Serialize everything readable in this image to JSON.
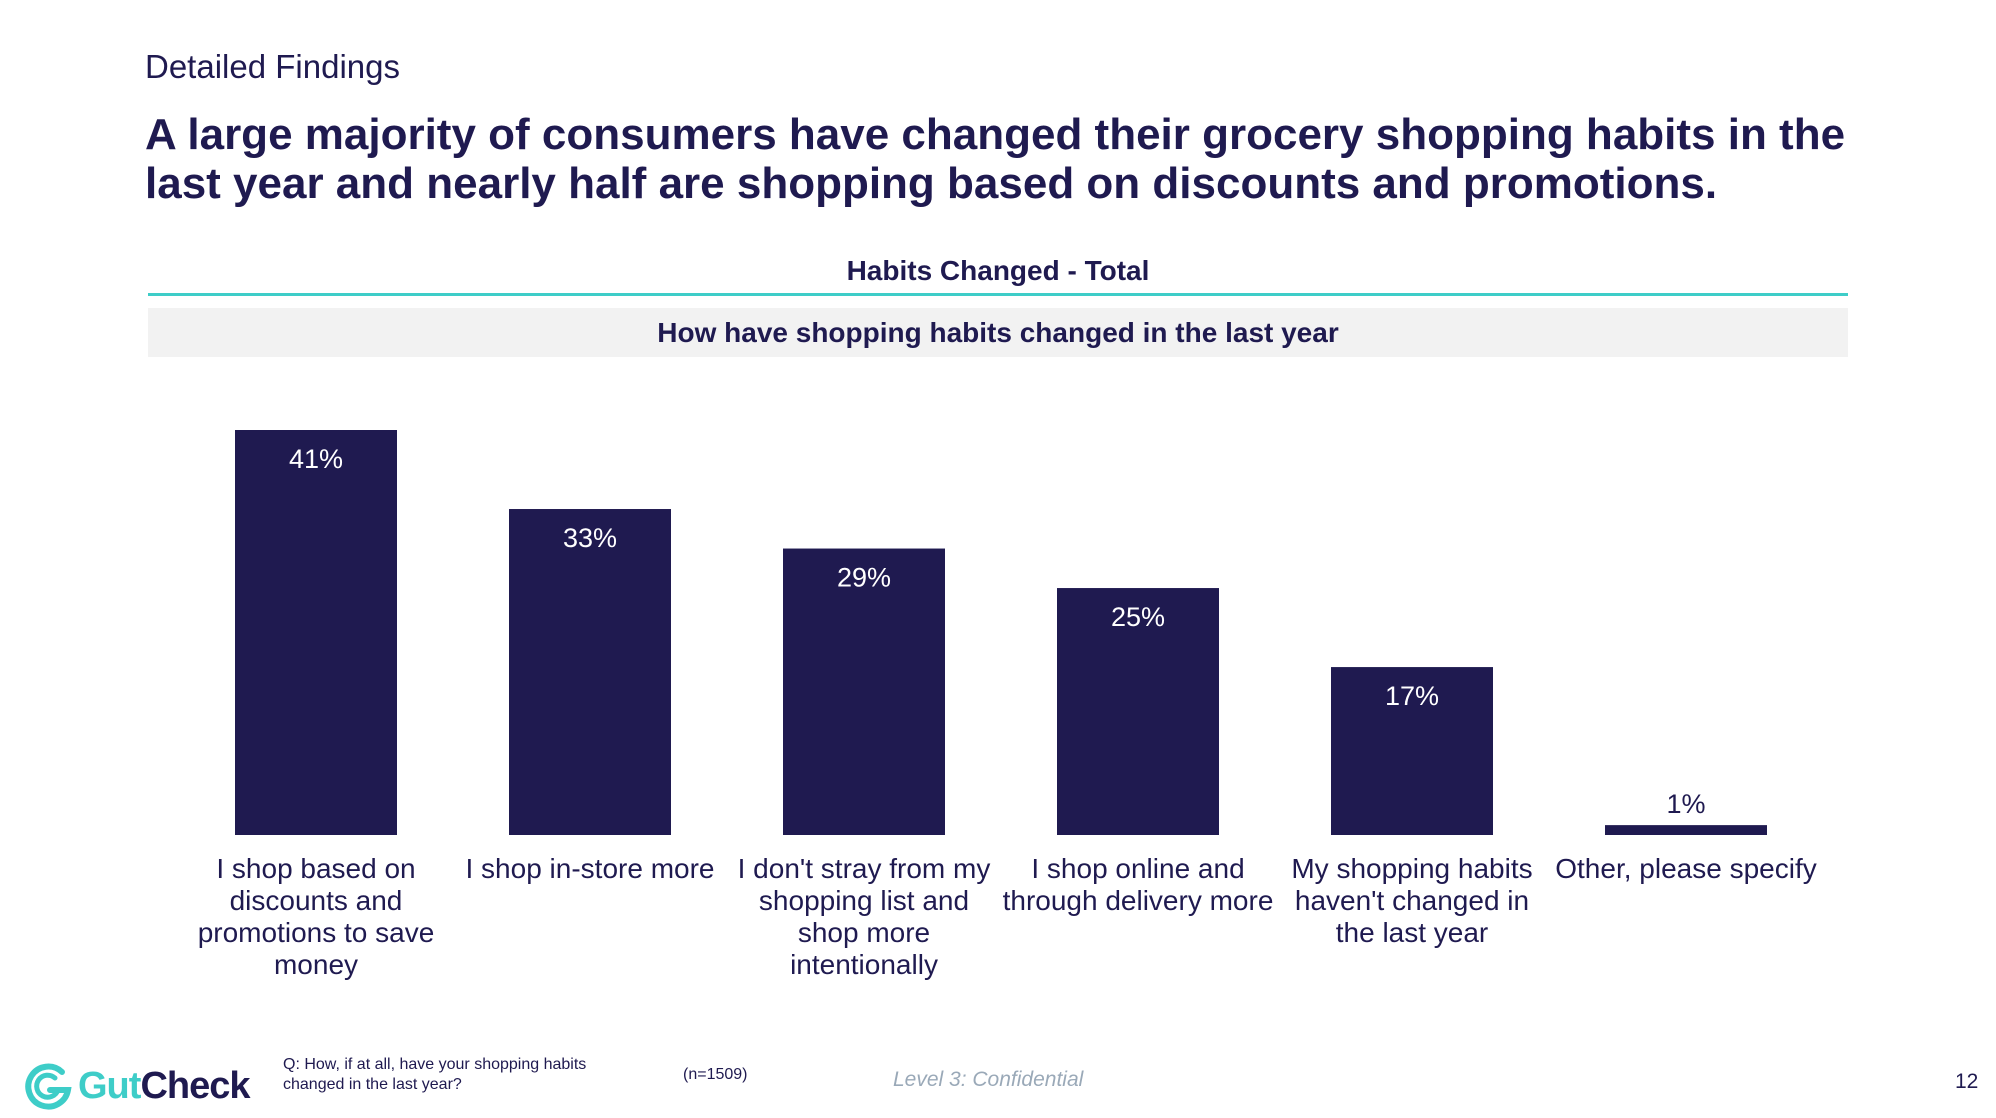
{
  "header": {
    "section_label": "Detailed Findings",
    "headline": "A large majority of consumers have changed their grocery shopping habits in the last year and nearly half are shopping based on discounts and promotions."
  },
  "chart_data": {
    "type": "bar",
    "title": "Habits Changed - Total",
    "subtitle": "How have shopping habits changed in the last year",
    "categories": [
      "I shop based on discounts and promotions to save money",
      "I shop in-store more",
      "I don't stray from my shopping list and shop more intentionally",
      "I shop online and through delivery more",
      "My shopping habits haven't changed in the last year",
      "Other, please specify"
    ],
    "values": [
      41,
      33,
      29,
      25,
      17,
      1
    ],
    "value_labels": [
      "41%",
      "33%",
      "29%",
      "25%",
      "17%",
      "1%"
    ],
    "ylim": [
      0,
      45
    ],
    "grid": false,
    "bar_color": "#1f1a50"
  },
  "footer": {
    "logo_gut": "Gut",
    "logo_check": "Check",
    "question": "Q: How, if at all, have your shopping habits changed in the last year?",
    "sample": "(n=1509)",
    "confidential": "Level 3: Confidential",
    "page_number": "12"
  },
  "colors": {
    "navy": "#1f1a50",
    "teal": "#3ecdc8",
    "band": "#f2f2f2",
    "confidential_gray": "#9aa9b8"
  },
  "icons": {
    "logo": "gutcheck-logo-icon"
  }
}
